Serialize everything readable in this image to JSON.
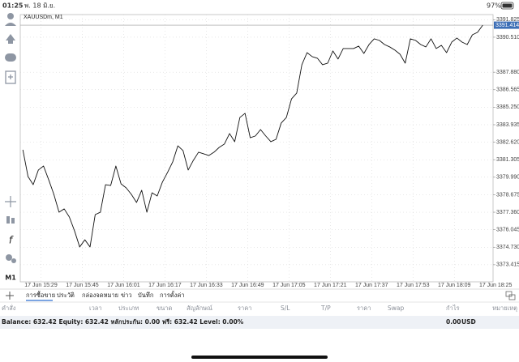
{
  "status_bar": {
    "time": "01:25",
    "date": "พ. 18 มิ.ย.",
    "battery": "97%"
  },
  "toolbar": {
    "timeframe": "M1"
  },
  "chart_data": {
    "type": "line",
    "title": "XAUUSDm, M1",
    "color": "#111111",
    "grid": true,
    "x": [
      "17 Jun 15:22",
      "17 Jun 15:24",
      "17 Jun 15:26",
      "17 Jun 15:28",
      "17 Jun 15:30",
      "17 Jun 15:32",
      "17 Jun 15:34",
      "17 Jun 15:36",
      "17 Jun 15:38",
      "17 Jun 15:40",
      "17 Jun 15:42",
      "17 Jun 15:44",
      "17 Jun 15:46",
      "17 Jun 15:48",
      "17 Jun 15:50",
      "17 Jun 15:52",
      "17 Jun 15:54",
      "17 Jun 15:56",
      "17 Jun 15:58",
      "17 Jun 16:00",
      "17 Jun 16:02",
      "17 Jun 16:04",
      "17 Jun 16:06",
      "17 Jun 16:08",
      "17 Jun 16:10",
      "17 Jun 16:12",
      "17 Jun 16:14",
      "17 Jun 16:16",
      "17 Jun 16:18",
      "17 Jun 16:20",
      "17 Jun 16:22",
      "17 Jun 16:24",
      "17 Jun 16:26",
      "17 Jun 16:28",
      "17 Jun 16:30",
      "17 Jun 16:32",
      "17 Jun 16:34",
      "17 Jun 16:36",
      "17 Jun 16:38",
      "17 Jun 16:40",
      "17 Jun 16:42",
      "17 Jun 16:44",
      "17 Jun 16:46",
      "17 Jun 16:48",
      "17 Jun 16:50",
      "17 Jun 16:52",
      "17 Jun 16:54",
      "17 Jun 16:56",
      "17 Jun 16:58",
      "17 Jun 17:00",
      "17 Jun 17:02",
      "17 Jun 17:04",
      "17 Jun 17:06",
      "17 Jun 17:08",
      "17 Jun 17:10",
      "17 Jun 17:12",
      "17 Jun 17:14",
      "17 Jun 17:16",
      "17 Jun 17:18",
      "17 Jun 17:20",
      "17 Jun 17:22",
      "17 Jun 17:24",
      "17 Jun 17:26",
      "17 Jun 17:28",
      "17 Jun 17:30",
      "17 Jun 17:32",
      "17 Jun 17:34",
      "17 Jun 17:36",
      "17 Jun 17:38",
      "17 Jun 17:40",
      "17 Jun 17:42",
      "17 Jun 17:44",
      "17 Jun 17:46",
      "17 Jun 17:48",
      "17 Jun 17:50",
      "17 Jun 17:52",
      "17 Jun 17:54",
      "17 Jun 17:56",
      "17 Jun 17:58",
      "17 Jun 18:00",
      "17 Jun 18:02",
      "17 Jun 18:04",
      "17 Jun 18:06",
      "17 Jun 18:08",
      "17 Jun 18:10",
      "17 Jun 18:12",
      "17 Jun 18:14",
      "17 Jun 18:16",
      "17 Jun 18:18",
      "17 Jun 18:20"
    ],
    "values": [
      3382.05,
      3380.04,
      3379.43,
      3380.53,
      3380.83,
      3379.8,
      3378.7,
      3377.36,
      3377.61,
      3377.0,
      3375.96,
      3374.75,
      3375.29,
      3374.75,
      3377.18,
      3377.36,
      3379.43,
      3379.37,
      3380.83,
      3379.49,
      3379.19,
      3378.7,
      3378.09,
      3379.01,
      3377.36,
      3378.82,
      3378.58,
      3379.62,
      3380.35,
      3381.14,
      3382.35,
      3381.99,
      3380.53,
      3381.26,
      3381.87,
      3381.75,
      3381.62,
      3381.87,
      3382.23,
      3382.48,
      3383.27,
      3382.66,
      3384.48,
      3384.79,
      3382.96,
      3383.09,
      3383.57,
      3383.09,
      3382.66,
      3382.84,
      3384.06,
      3384.48,
      3385.88,
      3386.31,
      3388.44,
      3389.35,
      3389.05,
      3388.93,
      3388.44,
      3388.56,
      3389.48,
      3388.87,
      3389.66,
      3389.66,
      3389.66,
      3389.84,
      3389.29,
      3389.96,
      3390.39,
      3390.27,
      3389.96,
      3389.78,
      3389.54,
      3389.23,
      3388.56,
      3390.39,
      3390.27,
      3389.96,
      3389.78,
      3390.39,
      3389.66,
      3389.9,
      3389.35,
      3390.14,
      3390.45,
      3390.14,
      3389.96,
      3390.69,
      3390.88,
      3391.414
    ],
    "current_price": 3391.414,
    "xlim": [
      "17 Jun 15:21",
      "17 Jun 18:24"
    ],
    "xticks": [
      "17 Jun 15:29",
      "17 Jun 15:45",
      "17 Jun 16:01",
      "17 Jun 16:17",
      "17 Jun 16:33",
      "17 Jun 16:49",
      "17 Jun 17:05",
      "17 Jun 17:21",
      "17 Jun 17:37",
      "17 Jun 17:53",
      "17 Jun 18:09",
      "17 Jun 18:25"
    ],
    "ylim": [
      3372.13,
      3392.21
    ],
    "yticks": [
      3391.825,
      {
        "value": 3390.51,
        "label": "3390.510"
      },
      {
        "value": 3387.88,
        "label": "3387.880"
      },
      3386.565,
      {
        "value": 3385.25,
        "label": "3385.250"
      },
      3383.935,
      {
        "value": 3382.62,
        "label": "3382.620"
      },
      3381.305,
      {
        "value": 3379.99,
        "label": "3379.990"
      },
      3378.675,
      {
        "value": 3377.36,
        "label": "3377.360"
      },
      3376.045,
      {
        "value": 3374.73,
        "label": "3374.730"
      },
      3373.415
    ]
  },
  "tabs": [
    "การซื้อขาย",
    "ประวัติ",
    "กล่องจดหมาย",
    "ข่าว",
    "บันทึก",
    "การตั้งค่า"
  ],
  "table": {
    "columns": [
      "คำสั่ง",
      "เวลา",
      "ประเภท",
      "ขนาด",
      "สัญลักษณ์",
      "ราคา",
      "S/L",
      "T/P",
      "ราคา",
      "Swap",
      "กำไร",
      "หมายเหตุ"
    ]
  },
  "account": {
    "summary": "Balance: 632.42 Equity: 632.42 หลักประกัน: 0.00 ฟรี: 632.42 Level: 0.00%",
    "profit": "0.00",
    "currency": "USD"
  }
}
